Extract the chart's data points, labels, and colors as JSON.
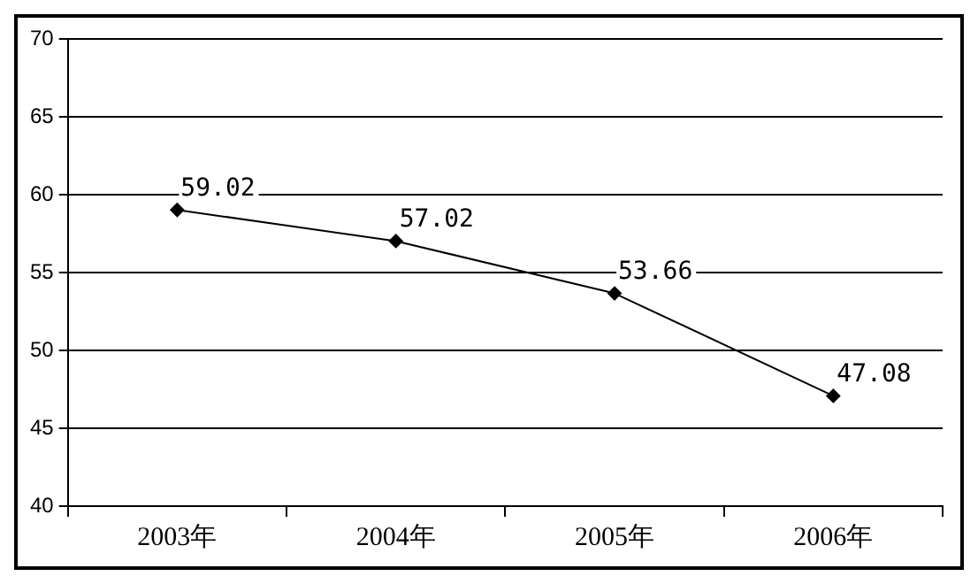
{
  "chart_data": {
    "type": "line",
    "categories": [
      "2003年",
      "2004年",
      "2005年",
      "2006年"
    ],
    "series": [
      {
        "color": "#000000",
        "values": [
          59.02,
          57.02,
          53.66,
          47.08
        ]
      }
    ],
    "ylim": [
      40,
      70
    ],
    "yticks": [
      40,
      45,
      50,
      55,
      60,
      65,
      70
    ],
    "grid": "y",
    "legend": false,
    "marker": "diamond",
    "line_style": "solid",
    "data_labels": true
  }
}
